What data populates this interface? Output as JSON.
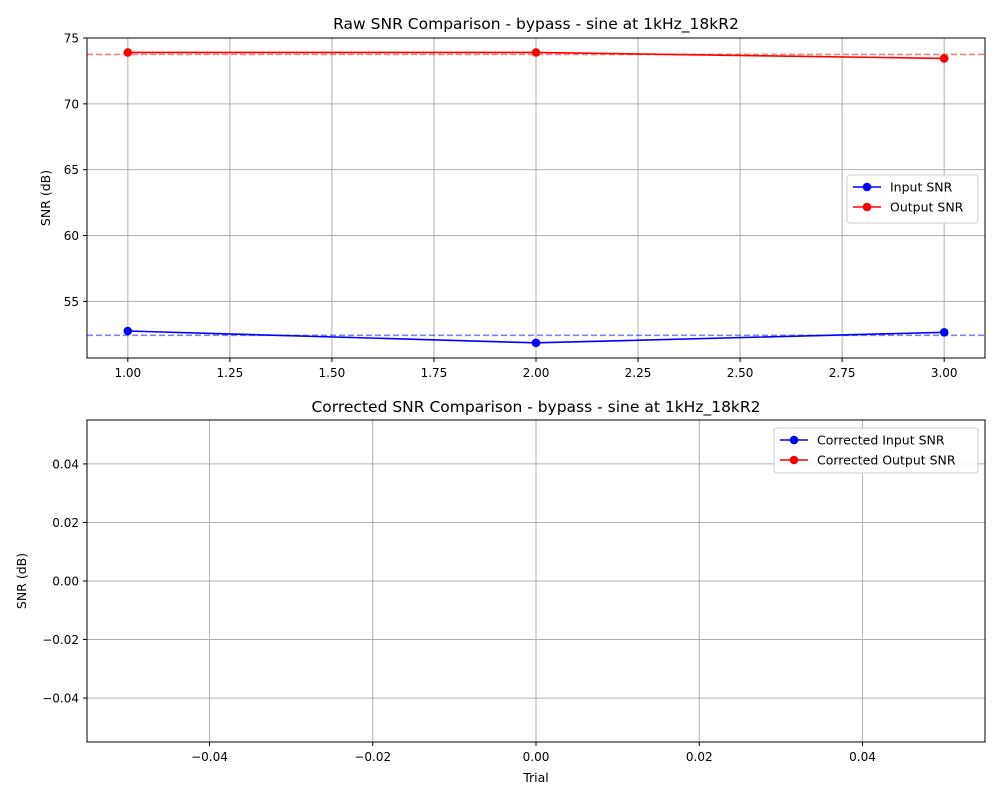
{
  "chart_data": [
    {
      "type": "line",
      "title": "Raw SNR Comparison - bypass - sine at 1kHz_18kR2",
      "xlabel": "",
      "ylabel": "SNR (dB)",
      "xlim": [
        0.9,
        3.1
      ],
      "ylim": [
        50.7,
        75.0
      ],
      "xticks": [
        "1.00",
        "1.25",
        "1.50",
        "1.75",
        "2.00",
        "2.25",
        "2.50",
        "2.75",
        "3.00"
      ],
      "xtick_values": [
        1.0,
        1.25,
        1.5,
        1.75,
        2.0,
        2.25,
        2.5,
        2.75,
        3.0
      ],
      "yticks": [
        "55",
        "60",
        "65",
        "70",
        "75"
      ],
      "ytick_values": [
        55,
        60,
        65,
        70,
        75
      ],
      "grid": true,
      "legend_position": "center-right",
      "series": [
        {
          "name": "Input SNR",
          "color": "#0000ff",
          "x": [
            1,
            2,
            3
          ],
          "y": [
            52.75,
            51.85,
            52.65
          ]
        },
        {
          "name": "Output SNR",
          "color": "#ff0000",
          "x": [
            1,
            2,
            3
          ],
          "y": [
            73.9,
            73.9,
            73.45
          ]
        }
      ],
      "reference_lines": [
        {
          "color": "#ff0000",
          "y": 73.75,
          "style": "dashed"
        },
        {
          "color": "#0000ff",
          "y": 52.42,
          "style": "dashed"
        }
      ]
    },
    {
      "type": "line",
      "title": "Corrected SNR Comparison - bypass - sine at 1kHz_18kR2",
      "xlabel": "Trial",
      "ylabel": "SNR (dB)",
      "xlim": [
        -0.055,
        0.055
      ],
      "ylim": [
        -0.055,
        0.055
      ],
      "xticks": [
        "−0.04",
        "−0.02",
        "0.00",
        "0.02",
        "0.04"
      ],
      "xtick_values": [
        -0.04,
        -0.02,
        0.0,
        0.02,
        0.04
      ],
      "yticks": [
        "−0.04",
        "−0.02",
        "0.00",
        "0.02",
        "0.04"
      ],
      "ytick_values": [
        -0.04,
        -0.02,
        0.0,
        0.02,
        0.04
      ],
      "grid": true,
      "legend_position": "top-right",
      "series": [
        {
          "name": "Corrected Input SNR",
          "color": "#0000ff",
          "x": [],
          "y": []
        },
        {
          "name": "Corrected Output SNR",
          "color": "#ff0000",
          "x": [],
          "y": []
        }
      ]
    }
  ]
}
